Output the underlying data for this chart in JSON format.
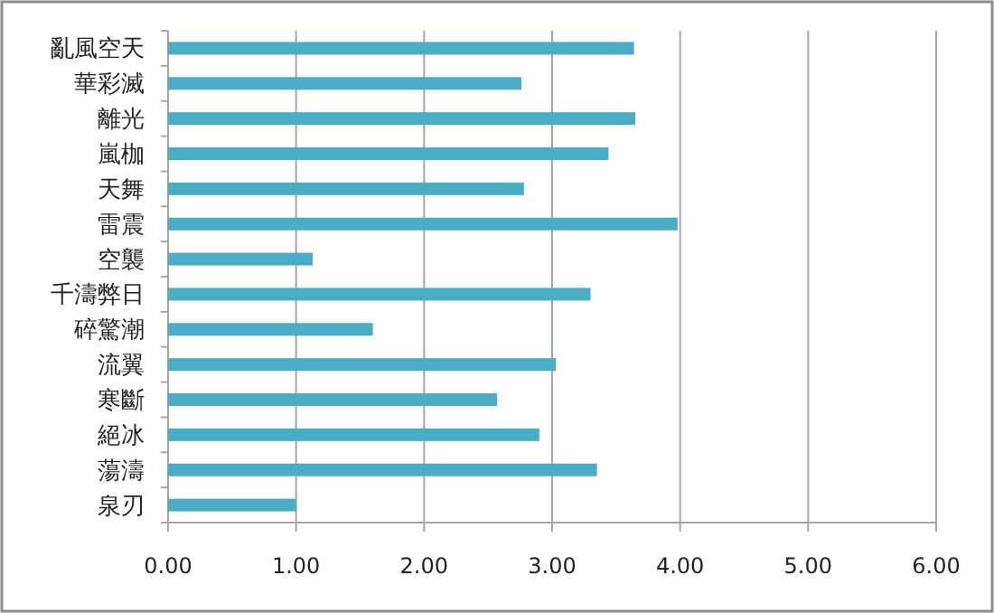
{
  "chart_data": {
    "type": "bar",
    "orientation": "horizontal",
    "categories": [
      "亂風空天",
      "華彩滅",
      "離光",
      "嵐枷",
      "天舞",
      "雷震",
      "空襲",
      "千濤弊日",
      "碎驚潮",
      "流翼",
      "寒斷",
      "絕冰",
      "蕩濤",
      "泉刃"
    ],
    "values": [
      3.64,
      2.76,
      3.65,
      3.44,
      2.78,
      3.98,
      1.13,
      3.3,
      1.6,
      3.03,
      2.57,
      2.9,
      3.35,
      1.0
    ],
    "color": "#4bacc6",
    "xlim": [
      0,
      6
    ],
    "xticks": [
      {
        "value": 0,
        "label": "0.00"
      },
      {
        "value": 1,
        "label": "1.00"
      },
      {
        "value": 2,
        "label": "2.00"
      },
      {
        "value": 3,
        "label": "3.00"
      },
      {
        "value": 4,
        "label": "4.00"
      },
      {
        "value": 5,
        "label": "5.00"
      },
      {
        "value": 6,
        "label": "6.00"
      }
    ],
    "grid": "x"
  }
}
